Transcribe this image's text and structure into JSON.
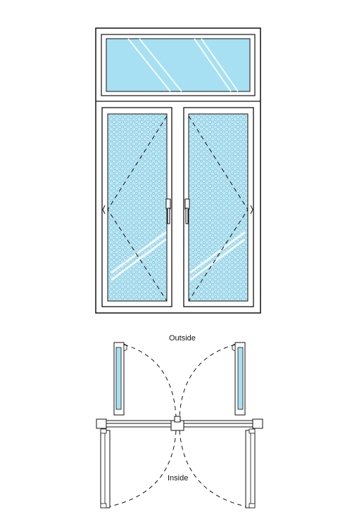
{
  "diagram": {
    "labels": {
      "outside": "Outside",
      "inside": "Inside"
    },
    "colors": {
      "frame": "#111111",
      "glass": "#a6e0f2",
      "glass_highlight": "#ffffff",
      "mesh_dot": "#86c9df",
      "mesh_bg": "#bfe8f4",
      "background": "#ffffff"
    },
    "components": [
      "transom-glass-pane",
      "left-casement-sash",
      "right-casement-sash",
      "left-handle",
      "right-handle",
      "sill-section",
      "outward-swing-arc",
      "inward-swing-arc"
    ]
  }
}
